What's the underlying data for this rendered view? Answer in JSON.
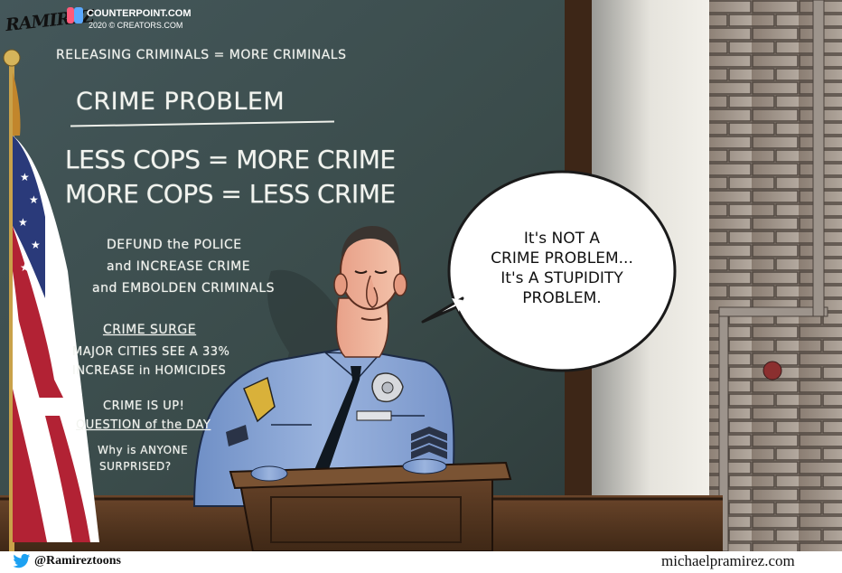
{
  "credits": {
    "signature": "RAMIREZ",
    "site": "COUNTERPOINT.COM",
    "copyright": "2020 © CREATORS.COM"
  },
  "chalkboard": {
    "line1": "RELEASING CRIMINALS = MORE CRIMINALS",
    "heading": "CRIME PROBLEM",
    "line2": "LESS COPS = MORE CRIME",
    "line3": "MORE COPS = LESS CRIME",
    "defund": [
      "DEFUND the POLICE",
      "and INCREASE CRIME",
      "and EMBOLDEN CRIMINALS"
    ],
    "surge_heading": "CRIME SURGE",
    "surge": [
      "MAJOR CITIES SEE A 33%",
      "INCREASE in HOMICIDES"
    ],
    "crime_up": "CRIME IS UP!",
    "question_heading": "QUESTION of the DAY",
    "question": [
      "Why is ANYONE",
      "SURPRISED?"
    ]
  },
  "speech_bubble": [
    "It's NOT A",
    "CRIME PROBLEM...",
    "It's A STUPIDITY",
    "PROBLEM."
  ],
  "footer": {
    "handle": "@Ramireztoons",
    "website": "michaelpramirez.com",
    "twitter_color": "#1da1f2"
  },
  "colors": {
    "chalkboard": "#3c4d4b",
    "uniform": "#7f9dcf",
    "wood": "#5a3a22",
    "flag_red": "#b22234",
    "flag_blue": "#2a3a7a"
  }
}
